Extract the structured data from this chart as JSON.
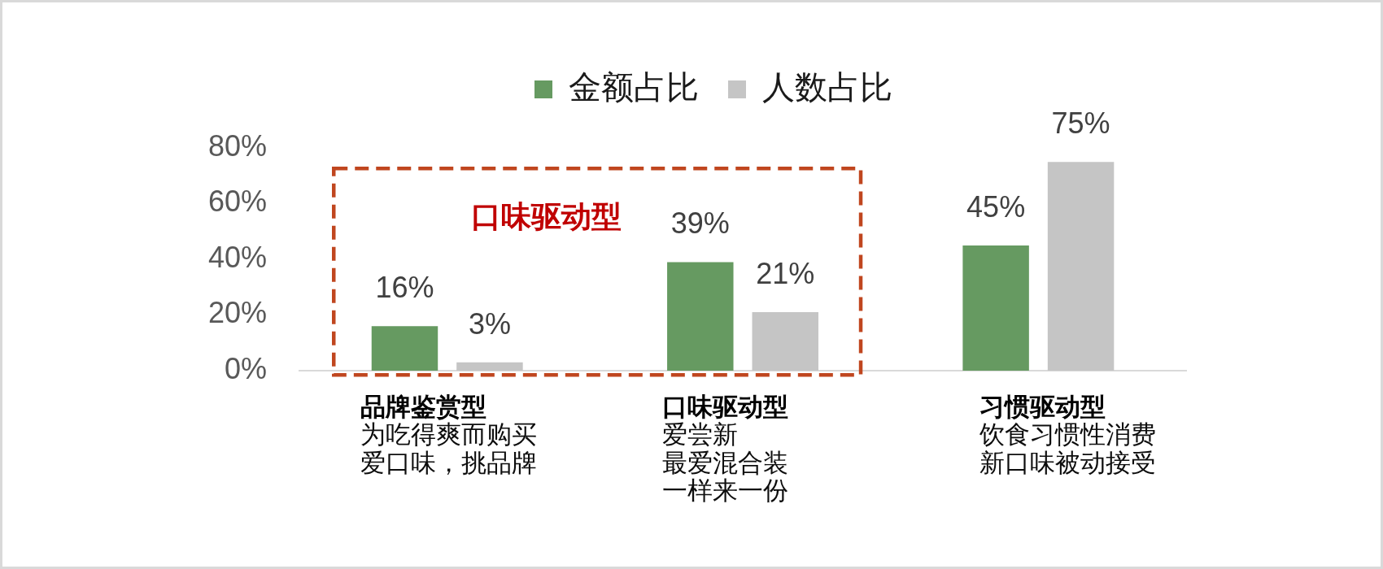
{
  "chart_data": {
    "type": "bar",
    "categories": [
      "品牌鉴赏型",
      "口味驱动型",
      "习惯驱动型"
    ],
    "series": [
      {
        "name": "金额占比",
        "color": "#669a61",
        "values": [
          16,
          39,
          45
        ],
        "value_labels": [
          "16%",
          "39%",
          "45%"
        ]
      },
      {
        "name": "人数占比",
        "color": "#c5c5c5",
        "values": [
          3,
          21,
          75
        ],
        "value_labels": [
          "3%",
          "21%",
          "75%"
        ]
      }
    ],
    "ylim": [
      0,
      80
    ],
    "yticks": [
      {
        "value": 0,
        "label": "0%"
      },
      {
        "value": 20,
        "label": "20%"
      },
      {
        "value": 40,
        "label": "40%"
      },
      {
        "value": 60,
        "label": "60%"
      },
      {
        "value": 80,
        "label": "80%"
      }
    ],
    "legend": "top",
    "annotations": [
      "口味驱动型",
      "为吃得爽而购买",
      "爱口味，挑品牌",
      "爱尝新",
      "最爱混合装",
      "一样来一份",
      "饮食习惯性消费",
      "新口味被动接受"
    ]
  }
}
